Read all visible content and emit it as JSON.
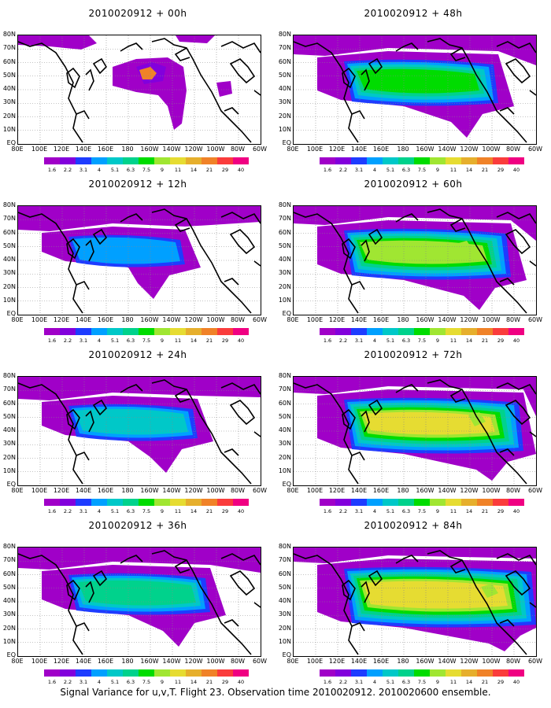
{
  "figure": {
    "caption": "Signal Variance for u,v,T. Flight 23. Observation time 2010020912. 2010020600 ensemble.",
    "lat_labels": [
      "80N",
      "70N",
      "60N",
      "50N",
      "40N",
      "30N",
      "20N",
      "10N",
      "EQ"
    ],
    "lon_labels": [
      "80E",
      "100E",
      "120E",
      "140E",
      "160E",
      "180",
      "160W",
      "140W",
      "120W",
      "100W",
      "80W",
      "60W"
    ],
    "colorbar": {
      "labels": [
        "1.6",
        "2.2",
        "3.1",
        "4",
        "5.1",
        "6.3",
        "7.5",
        "9",
        "11",
        "14",
        "21",
        "29",
        "40"
      ],
      "colors": [
        "#a000c8",
        "#8200dc",
        "#1e3cff",
        "#00a0ff",
        "#00c8c8",
        "#00d28c",
        "#00dc00",
        "#a0e632",
        "#e6dc32",
        "#e6af2d",
        "#f08228",
        "#fa3c3c",
        "#f00082"
      ]
    },
    "panels": [
      {
        "title": "2010020912 + 00h",
        "level": 1
      },
      {
        "title": "2010020912 + 48h",
        "level": 5
      },
      {
        "title": "2010020912 + 12h",
        "level": 2
      },
      {
        "title": "2010020912 + 60h",
        "level": 6
      },
      {
        "title": "2010020912 + 24h",
        "level": 3
      },
      {
        "title": "2010020912 + 72h",
        "level": 7
      },
      {
        "title": "2010020912 + 36h",
        "level": 4
      },
      {
        "title": "2010020912 + 84h",
        "level": 8
      }
    ]
  }
}
